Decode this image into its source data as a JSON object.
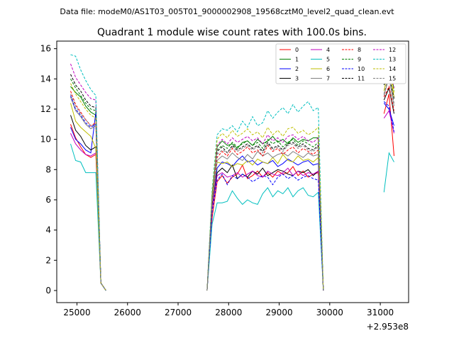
{
  "suptitle": "Data file: modeM0/AS1T03_005T01_9000002908_19568cztM0_level2_quad_clean.evt",
  "chart_data": {
    "type": "line",
    "title": "Quadrant 1 module wise count rates with 100.0s bins.",
    "xlabel": "",
    "ylabel": "",
    "x_offset_label": "+2.953e8",
    "xlim": [
      24600,
      31560
    ],
    "ylim": [
      -0.8,
      16.5
    ],
    "xticks": [
      25000,
      26000,
      27000,
      28000,
      29000,
      30000,
      31000
    ],
    "xtick_labels": [
      "25000",
      "26000",
      "27000",
      "28000",
      "29000",
      "30000",
      "31000"
    ],
    "yticks": [
      0,
      2,
      4,
      6,
      8,
      10,
      12,
      14,
      16
    ],
    "ytick_labels": [
      "0",
      "2",
      "4",
      "6",
      "8",
      "10",
      "12",
      "14",
      "16"
    ],
    "grid": false,
    "legend_position": "top-right",
    "x_segments": [
      [
        24873,
        24973,
        25073,
        25173,
        25273,
        25373,
        25473,
        25573
      ],
      [
        27573,
        27673,
        27773,
        27873,
        27973,
        28073,
        28173,
        28273,
        28373,
        28473,
        28573,
        28673,
        28773,
        28873,
        28973,
        29073,
        29173,
        29273,
        29373,
        29473,
        29573,
        29673,
        29773,
        29873
      ],
      [
        31073,
        31173,
        31273
      ]
    ],
    "series": [
      {
        "name": "0",
        "color": "#ff0000",
        "dash": false,
        "segments": [
          [
            11.0,
            10.1,
            9.5,
            9.0,
            8.8,
            9.0,
            0.5,
            0.0
          ],
          [
            0.0,
            4.8,
            7.2,
            7.6,
            7.1,
            7.5,
            7.7,
            8.3,
            7.4,
            7.6,
            7.9,
            7.5,
            7.8,
            7.5,
            7.9,
            7.7,
            7.8,
            8.2,
            7.6,
            7.9,
            7.5,
            7.7,
            7.8,
            0.0
          ],
          [
            11.7,
            13.0,
            8.9
          ]
        ]
      },
      {
        "name": "1",
        "color": "#008000",
        "dash": false,
        "segments": [
          [
            13.5,
            13.1,
            12.8,
            12.2,
            11.8,
            11.6,
            0.5,
            0.0
          ],
          [
            0.0,
            6.3,
            9.5,
            9.9,
            9.6,
            9.7,
            9.4,
            9.8,
            9.9,
            9.6,
            10.0,
            9.7,
            9.9,
            10.2,
            9.8,
            10.0,
            9.7,
            10.1,
            9.8,
            10.0,
            9.9,
            10.1,
            10.1,
            0.0
          ],
          [
            13.6,
            14.6,
            13.4
          ]
        ]
      },
      {
        "name": "2",
        "color": "#0000ff",
        "dash": false,
        "segments": [
          [
            10.8,
            10.0,
            9.7,
            9.3,
            9.1,
            11.8,
            0.5,
            0.0
          ],
          [
            0.0,
            5.4,
            8.1,
            8.5,
            8.4,
            8.2,
            8.6,
            8.9,
            8.5,
            8.6,
            8.3,
            8.5,
            8.4,
            8.6,
            8.2,
            8.4,
            8.7,
            8.5,
            8.3,
            8.5,
            8.6,
            8.3,
            8.4,
            0.0
          ],
          [
            12.4,
            12.0,
            10.9
          ]
        ]
      },
      {
        "name": "3",
        "color": "#000000",
        "dash": false,
        "segments": [
          [
            11.6,
            10.6,
            10.2,
            9.6,
            9.3,
            9.5,
            0.5,
            0.0
          ],
          [
            0.0,
            5.5,
            7.8,
            8.1,
            7.8,
            8.3,
            7.4,
            7.7,
            7.5,
            7.9,
            7.7,
            8.1,
            7.6,
            7.8,
            8.0,
            7.9,
            7.7,
            7.6,
            7.9,
            7.8,
            8.0,
            7.6,
            7.9,
            0.0
          ],
          [
            12.6,
            13.4,
            11.7
          ]
        ]
      },
      {
        "name": "4",
        "color": "#bf00bf",
        "dash": false,
        "segments": [
          [
            10.4,
            9.7,
            9.3,
            9.0,
            8.9,
            9.1,
            0.5,
            0.0
          ],
          [
            0.0,
            5.4,
            7.6,
            7.8,
            7.5,
            7.6,
            7.8,
            7.5,
            7.7,
            7.9,
            7.6,
            7.5,
            7.9,
            7.7,
            7.6,
            7.8,
            8.1,
            7.6,
            7.9,
            7.6,
            7.8,
            7.7,
            7.9,
            0.0
          ],
          [
            11.4,
            11.9,
            10.4
          ]
        ]
      },
      {
        "name": "5",
        "color": "#00bfbf",
        "dash": false,
        "segments": [
          [
            9.7,
            8.6,
            8.5,
            7.8,
            7.8,
            7.8,
            0.5,
            0.0
          ],
          [
            0.0,
            4.4,
            5.8,
            5.8,
            5.9,
            6.6,
            6.1,
            5.7,
            6.0,
            5.8,
            5.7,
            6.4,
            6.8,
            6.2,
            6.6,
            6.4,
            6.8,
            6.2,
            6.6,
            6.8,
            6.3,
            6.2,
            6.5,
            0.0
          ],
          [
            6.5,
            9.1,
            8.5
          ]
        ]
      },
      {
        "name": "6",
        "color": "#bfbf00",
        "dash": false,
        "segments": [
          [
            12.4,
            11.2,
            10.8,
            10.5,
            10.2,
            9.4,
            0.5,
            0.0
          ],
          [
            0.0,
            5.9,
            8.5,
            8.4,
            8.5,
            8.2,
            8.4,
            8.3,
            8.6,
            8.3,
            8.7,
            8.5,
            8.4,
            8.8,
            8.4,
            9.0,
            8.6,
            8.5,
            8.9,
            8.6,
            8.7,
            8.5,
            8.8,
            0.0
          ],
          [
            13.2,
            14.8,
            12.8
          ]
        ]
      },
      {
        "name": "7",
        "color": "#808080",
        "dash": false,
        "segments": [
          [
            12.8,
            11.9,
            11.5,
            11.0,
            10.7,
            10.9,
            0.5,
            0.0
          ],
          [
            0.0,
            6.0,
            8.6,
            8.9,
            8.7,
            9.1,
            8.8,
            8.6,
            9.0,
            8.7,
            9.2,
            8.9,
            9.1,
            8.8,
            9.0,
            9.1,
            8.9,
            9.2,
            9.0,
            8.8,
            9.1,
            8.9,
            9.0,
            0.0
          ],
          [
            12.9,
            14.1,
            12.2
          ]
        ]
      },
      {
        "name": "8",
        "color": "#ff0000",
        "dash": true,
        "segments": [
          [
            13.2,
            12.3,
            11.8,
            11.3,
            10.9,
            11.1,
            0.5,
            0.0
          ],
          [
            0.0,
            6.0,
            8.8,
            9.2,
            8.9,
            9.4,
            9.0,
            9.2,
            9.5,
            9.1,
            9.3,
            8.9,
            9.6,
            9.2,
            9.4,
            9.0,
            9.3,
            9.5,
            9.1,
            9.4,
            9.2,
            9.0,
            9.3,
            0.0
          ],
          [
            12.8,
            13.5,
            11.9
          ]
        ]
      },
      {
        "name": "9",
        "color": "#008000",
        "dash": true,
        "segments": [
          [
            14.0,
            13.4,
            12.9,
            12.4,
            12.0,
            11.9,
            0.5,
            0.0
          ],
          [
            0.0,
            6.3,
            9.3,
            9.6,
            9.4,
            9.8,
            9.5,
            9.7,
            9.9,
            9.6,
            9.8,
            9.4,
            10.0,
            9.7,
            9.9,
            9.5,
            9.8,
            10.0,
            9.6,
            9.9,
            9.7,
            9.5,
            9.8,
            0.0
          ],
          [
            13.8,
            14.9,
            13.2
          ]
        ]
      },
      {
        "name": "10",
        "color": "#0000ff",
        "dash": true,
        "segments": [
          [
            12.9,
            12.0,
            11.6,
            11.1,
            10.8,
            11.0,
            0.5,
            0.0
          ],
          [
            0.0,
            5.2,
            7.3,
            7.7,
            7.0,
            7.6,
            7.4,
            7.7,
            7.5,
            7.2,
            7.4,
            7.6,
            7.5,
            7.0,
            7.5,
            7.7,
            7.4,
            7.6,
            7.3,
            7.5,
            7.6,
            7.4,
            7.3,
            0.0
          ],
          [
            12.5,
            12.2,
            10.5
          ]
        ]
      },
      {
        "name": "11",
        "color": "#000000",
        "dash": true,
        "segments": [
          [
            14.3,
            13.6,
            13.2,
            12.6,
            12.2,
            12.1,
            0.5,
            0.0
          ],
          [
            0.0,
            6.1,
            9.2,
            9.5,
            9.1,
            9.6,
            9.3,
            9.5,
            9.7,
            9.4,
            9.6,
            9.2,
            9.8,
            9.4,
            9.6,
            9.3,
            9.7,
            9.8,
            9.5,
            9.7,
            9.4,
            9.3,
            9.6,
            0.0
          ],
          [
            13.6,
            14.2,
            12.7
          ]
        ]
      },
      {
        "name": "12",
        "color": "#bf00bf",
        "dash": true,
        "segments": [
          [
            15.0,
            14.1,
            13.6,
            13.1,
            12.7,
            12.6,
            0.5,
            0.0
          ],
          [
            0.0,
            6.2,
            9.6,
            10.0,
            9.7,
            10.1,
            9.8,
            10.0,
            10.2,
            9.9,
            10.1,
            9.7,
            10.3,
            9.9,
            10.1,
            9.8,
            10.2,
            10.3,
            10.0,
            10.2,
            9.9,
            9.8,
            10.1,
            0.0
          ],
          [
            14.2,
            15.1,
            13.4
          ]
        ]
      },
      {
        "name": "13",
        "color": "#00bfbf",
        "dash": true,
        "segments": [
          [
            15.6,
            15.5,
            14.6,
            13.9,
            13.3,
            12.9,
            0.5,
            0.0
          ],
          [
            0.0,
            6.7,
            10.3,
            10.7,
            10.6,
            10.9,
            10.5,
            11.2,
            10.8,
            11.5,
            10.9,
            11.1,
            11.9,
            11.4,
            11.8,
            12.1,
            11.7,
            12.3,
            11.8,
            12.2,
            12.5,
            11.9,
            12.1,
            0.0
          ],
          [
            14.0,
            15.6,
            14.0
          ]
        ]
      },
      {
        "name": "14",
        "color": "#bfbf00",
        "dash": true,
        "segments": [
          [
            13.7,
            13.0,
            12.5,
            12.0,
            11.6,
            11.4,
            0.5,
            0.0
          ],
          [
            0.0,
            6.4,
            10.0,
            10.4,
            10.1,
            10.6,
            10.2,
            10.4,
            10.7,
            10.3,
            10.5,
            10.1,
            10.8,
            10.3,
            10.6,
            10.2,
            10.7,
            10.8,
            10.4,
            10.6,
            10.3,
            10.5,
            10.8,
            0.0
          ],
          [
            14.3,
            15.0,
            13.1
          ]
        ]
      },
      {
        "name": "15",
        "color": "#808080",
        "dash": true,
        "segments": [
          [
            13.0,
            12.2,
            11.7,
            11.3,
            10.9,
            11.0,
            0.5,
            0.0
          ],
          [
            0.0,
            6.1,
            9.0,
            9.3,
            9.1,
            9.5,
            9.2,
            9.4,
            9.6,
            9.3,
            9.5,
            9.1,
            9.7,
            9.3,
            9.5,
            9.2,
            9.6,
            9.7,
            9.4,
            9.6,
            9.3,
            9.2,
            9.5,
            0.0
          ],
          [
            13.0,
            14.4,
            12.4
          ]
        ]
      }
    ]
  }
}
